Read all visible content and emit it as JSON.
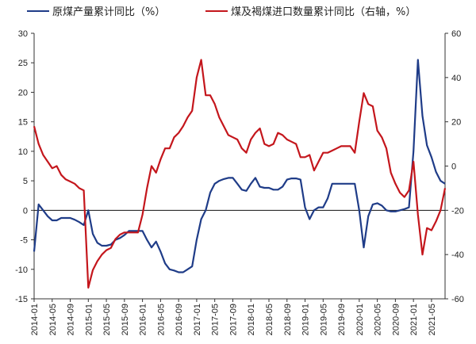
{
  "chart_data": {
    "type": "line",
    "x_tick_labels": [
      "2014-01",
      "2014-05",
      "2014-09",
      "2015-01",
      "2015-05",
      "2015-09",
      "2016-01",
      "2016-05",
      "2016-09",
      "2017-01",
      "2017-05",
      "2017-09",
      "2018-01",
      "2018-05",
      "2018-09",
      "2019-01",
      "2019-05",
      "2019-09",
      "2020-01",
      "2020-05",
      "2020-09",
      "2021-01",
      "2021-05"
    ],
    "left_axis": {
      "ylim": [
        -15,
        30
      ],
      "ticks": [
        -15,
        -10,
        -5,
        0,
        5,
        10,
        15,
        20,
        25,
        30
      ]
    },
    "right_axis": {
      "ylim": [
        -60,
        60
      ],
      "ticks": [
        -60,
        -40,
        -20,
        0,
        20,
        40,
        60
      ]
    },
    "zero_line": true,
    "series": [
      {
        "name": "原煤产量累计同比（%）",
        "axis": "left",
        "color": "#1f3c88",
        "points": [
          {
            "x": "2014-01",
            "y": -7
          },
          {
            "x": "2014-02",
            "y": 1
          },
          {
            "x": "2014-03",
            "y": 0
          },
          {
            "x": "2014-04",
            "y": -1
          },
          {
            "x": "2014-05",
            "y": -1.7
          },
          {
            "x": "2014-06",
            "y": -1.7
          },
          {
            "x": "2014-07",
            "y": -1.3
          },
          {
            "x": "2014-08",
            "y": -1.3
          },
          {
            "x": "2014-09",
            "y": -1.3
          },
          {
            "x": "2014-10",
            "y": -1.6
          },
          {
            "x": "2014-11",
            "y": -2
          },
          {
            "x": "2014-12",
            "y": -2.5
          },
          {
            "x": "2015-01",
            "y": 0
          },
          {
            "x": "2015-02",
            "y": -4
          },
          {
            "x": "2015-03",
            "y": -5.5
          },
          {
            "x": "2015-04",
            "y": -6
          },
          {
            "x": "2015-05",
            "y": -6
          },
          {
            "x": "2015-06",
            "y": -5.8
          },
          {
            "x": "2015-07",
            "y": -5
          },
          {
            "x": "2015-08",
            "y": -4.7
          },
          {
            "x": "2015-09",
            "y": -4.2
          },
          {
            "x": "2015-10",
            "y": -3.5
          },
          {
            "x": "2015-11",
            "y": -3.5
          },
          {
            "x": "2015-12",
            "y": -3.5
          },
          {
            "x": "2016-01",
            "y": -3.5
          },
          {
            "x": "2016-02",
            "y": -5
          },
          {
            "x": "2016-03",
            "y": -6.3
          },
          {
            "x": "2016-04",
            "y": -5.3
          },
          {
            "x": "2016-05",
            "y": -7
          },
          {
            "x": "2016-06",
            "y": -9
          },
          {
            "x": "2016-07",
            "y": -10
          },
          {
            "x": "2016-08",
            "y": -10.2
          },
          {
            "x": "2016-09",
            "y": -10.5
          },
          {
            "x": "2016-10",
            "y": -10.5
          },
          {
            "x": "2016-11",
            "y": -10
          },
          {
            "x": "2016-12",
            "y": -9.5
          },
          {
            "x": "2017-01",
            "y": -5
          },
          {
            "x": "2017-02",
            "y": -1.5
          },
          {
            "x": "2017-03",
            "y": 0
          },
          {
            "x": "2017-04",
            "y": 3
          },
          {
            "x": "2017-05",
            "y": 4.5
          },
          {
            "x": "2017-06",
            "y": 5
          },
          {
            "x": "2017-07",
            "y": 5.3
          },
          {
            "x": "2017-08",
            "y": 5.5
          },
          {
            "x": "2017-09",
            "y": 5.5
          },
          {
            "x": "2017-10",
            "y": 4.5
          },
          {
            "x": "2017-11",
            "y": 3.5
          },
          {
            "x": "2017-12",
            "y": 3.3
          },
          {
            "x": "2018-01",
            "y": 4.5
          },
          {
            "x": "2018-02",
            "y": 5.5
          },
          {
            "x": "2018-03",
            "y": 4
          },
          {
            "x": "2018-04",
            "y": 3.8
          },
          {
            "x": "2018-05",
            "y": 3.8
          },
          {
            "x": "2018-06",
            "y": 3.5
          },
          {
            "x": "2018-07",
            "y": 3.5
          },
          {
            "x": "2018-08",
            "y": 4
          },
          {
            "x": "2018-09",
            "y": 5.2
          },
          {
            "x": "2018-10",
            "y": 5.4
          },
          {
            "x": "2018-11",
            "y": 5.4
          },
          {
            "x": "2018-12",
            "y": 5.2
          },
          {
            "x": "2019-01",
            "y": 0.5
          },
          {
            "x": "2019-02",
            "y": -1.5
          },
          {
            "x": "2019-03",
            "y": 0
          },
          {
            "x": "2019-04",
            "y": 0.5
          },
          {
            "x": "2019-05",
            "y": 0.5
          },
          {
            "x": "2019-06",
            "y": 2
          },
          {
            "x": "2019-07",
            "y": 4.5
          },
          {
            "x": "2019-08",
            "y": 4.5
          },
          {
            "x": "2019-09",
            "y": 4.5
          },
          {
            "x": "2019-10",
            "y": 4.5
          },
          {
            "x": "2019-11",
            "y": 4.5
          },
          {
            "x": "2019-12",
            "y": 4.5
          },
          {
            "x": "2020-01",
            "y": 0
          },
          {
            "x": "2020-02",
            "y": -6.3
          },
          {
            "x": "2020-03",
            "y": -1
          },
          {
            "x": "2020-04",
            "y": 1
          },
          {
            "x": "2020-05",
            "y": 1.2
          },
          {
            "x": "2020-06",
            "y": 0.8
          },
          {
            "x": "2020-07",
            "y": 0
          },
          {
            "x": "2020-08",
            "y": -0.2
          },
          {
            "x": "2020-09",
            "y": -0.2
          },
          {
            "x": "2020-10",
            "y": 0
          },
          {
            "x": "2020-11",
            "y": 0.2
          },
          {
            "x": "2020-12",
            "y": 0.5
          },
          {
            "x": "2021-01",
            "y": 10
          },
          {
            "x": "2021-02",
            "y": 25.5
          },
          {
            "x": "2021-03",
            "y": 16
          },
          {
            "x": "2021-04",
            "y": 11
          },
          {
            "x": "2021-05",
            "y": 9
          },
          {
            "x": "2021-06",
            "y": 6.5
          },
          {
            "x": "2021-07",
            "y": 5
          },
          {
            "x": "2021-08",
            "y": 4.5
          }
        ]
      },
      {
        "name": "煤及褐煤进口数量累计同比（右轴，%）",
        "axis": "right",
        "color": "#c4161c",
        "points": [
          {
            "x": "2014-01",
            "y": 18
          },
          {
            "x": "2014-02",
            "y": 10
          },
          {
            "x": "2014-03",
            "y": 5
          },
          {
            "x": "2014-04",
            "y": 2
          },
          {
            "x": "2014-05",
            "y": -1
          },
          {
            "x": "2014-06",
            "y": 0
          },
          {
            "x": "2014-07",
            "y": -4
          },
          {
            "x": "2014-08",
            "y": -6
          },
          {
            "x": "2014-09",
            "y": -7
          },
          {
            "x": "2014-10",
            "y": -8
          },
          {
            "x": "2014-11",
            "y": -10
          },
          {
            "x": "2014-12",
            "y": -11
          },
          {
            "x": "2015-01",
            "y": -55
          },
          {
            "x": "2015-02",
            "y": -47
          },
          {
            "x": "2015-03",
            "y": -43
          },
          {
            "x": "2015-04",
            "y": -40
          },
          {
            "x": "2015-05",
            "y": -38
          },
          {
            "x": "2015-06",
            "y": -37
          },
          {
            "x": "2015-07",
            "y": -33
          },
          {
            "x": "2015-08",
            "y": -31
          },
          {
            "x": "2015-09",
            "y": -30
          },
          {
            "x": "2015-10",
            "y": -30
          },
          {
            "x": "2015-11",
            "y": -30
          },
          {
            "x": "2015-12",
            "y": -30
          },
          {
            "x": "2016-01",
            "y": -22
          },
          {
            "x": "2016-02",
            "y": -10
          },
          {
            "x": "2016-03",
            "y": 0
          },
          {
            "x": "2016-04",
            "y": -3
          },
          {
            "x": "2016-05",
            "y": 3
          },
          {
            "x": "2016-06",
            "y": 8
          },
          {
            "x": "2016-07",
            "y": 8
          },
          {
            "x": "2016-08",
            "y": 13
          },
          {
            "x": "2016-09",
            "y": 15
          },
          {
            "x": "2016-10",
            "y": 18
          },
          {
            "x": "2016-11",
            "y": 22
          },
          {
            "x": "2016-12",
            "y": 25
          },
          {
            "x": "2017-01",
            "y": 40
          },
          {
            "x": "2017-02",
            "y": 48
          },
          {
            "x": "2017-03",
            "y": 32
          },
          {
            "x": "2017-04",
            "y": 32
          },
          {
            "x": "2017-05",
            "y": 28
          },
          {
            "x": "2017-06",
            "y": 22
          },
          {
            "x": "2017-07",
            "y": 18
          },
          {
            "x": "2017-08",
            "y": 14
          },
          {
            "x": "2017-09",
            "y": 13
          },
          {
            "x": "2017-10",
            "y": 12
          },
          {
            "x": "2017-11",
            "y": 8
          },
          {
            "x": "2017-12",
            "y": 6
          },
          {
            "x": "2018-01",
            "y": 12
          },
          {
            "x": "2018-02",
            "y": 15
          },
          {
            "x": "2018-03",
            "y": 17
          },
          {
            "x": "2018-04",
            "y": 10
          },
          {
            "x": "2018-05",
            "y": 9
          },
          {
            "x": "2018-06",
            "y": 10
          },
          {
            "x": "2018-07",
            "y": 15
          },
          {
            "x": "2018-08",
            "y": 14
          },
          {
            "x": "2018-09",
            "y": 12
          },
          {
            "x": "2018-10",
            "y": 11
          },
          {
            "x": "2018-11",
            "y": 10
          },
          {
            "x": "2018-12",
            "y": 4
          },
          {
            "x": "2019-01",
            "y": 4
          },
          {
            "x": "2019-02",
            "y": 5
          },
          {
            "x": "2019-03",
            "y": -2
          },
          {
            "x": "2019-04",
            "y": 2
          },
          {
            "x": "2019-05",
            "y": 6
          },
          {
            "x": "2019-06",
            "y": 6
          },
          {
            "x": "2019-07",
            "y": 7
          },
          {
            "x": "2019-08",
            "y": 8
          },
          {
            "x": "2019-09",
            "y": 9
          },
          {
            "x": "2019-10",
            "y": 9
          },
          {
            "x": "2019-11",
            "y": 9
          },
          {
            "x": "2019-12",
            "y": 6
          },
          {
            "x": "2020-01",
            "y": 20
          },
          {
            "x": "2020-02",
            "y": 33
          },
          {
            "x": "2020-03",
            "y": 28
          },
          {
            "x": "2020-04",
            "y": 27
          },
          {
            "x": "2020-05",
            "y": 16
          },
          {
            "x": "2020-06",
            "y": 13
          },
          {
            "x": "2020-07",
            "y": 8
          },
          {
            "x": "2020-08",
            "y": -3
          },
          {
            "x": "2020-09",
            "y": -8
          },
          {
            "x": "2020-10",
            "y": -12
          },
          {
            "x": "2020-11",
            "y": -14
          },
          {
            "x": "2020-12",
            "y": -11
          },
          {
            "x": "2021-01",
            "y": 2
          },
          {
            "x": "2021-02",
            "y": -22
          },
          {
            "x": "2021-03",
            "y": -40
          },
          {
            "x": "2021-04",
            "y": -28
          },
          {
            "x": "2021-05",
            "y": -29
          },
          {
            "x": "2021-06",
            "y": -25
          },
          {
            "x": "2021-07",
            "y": -20
          },
          {
            "x": "2021-08",
            "y": -10
          }
        ]
      }
    ]
  }
}
